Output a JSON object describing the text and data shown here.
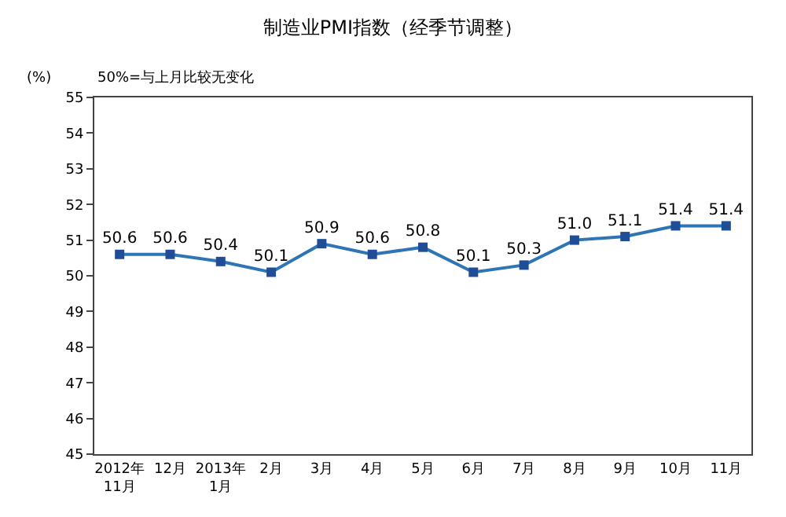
{
  "chart_data": {
    "type": "line",
    "title": "制造业PMI指数（经季节调整）",
    "ylabel": "(%)",
    "annotations": [
      "50%=与上月比较无变化"
    ],
    "categories": [
      "2012年\n11月",
      "12月",
      "2013年\n1月",
      "2月",
      "3月",
      "4月",
      "5月",
      "6月",
      "7月",
      "8月",
      "9月",
      "10月",
      "11月"
    ],
    "series": [
      {
        "color": "#2e75b6",
        "values": [
          50.6,
          50.6,
          50.4,
          50.1,
          50.9,
          50.6,
          50.8,
          50.1,
          50.3,
          51.0,
          51.1,
          51.4,
          51.4
        ]
      }
    ],
    "value_labels": [
      "50.6",
      "50.6",
      "50.4",
      "50.1",
      "50.9",
      "50.6",
      "50.8",
      "50.1",
      "50.3",
      "51.0",
      "51.1",
      "51.4",
      "51.4"
    ],
    "ylim": [
      45,
      55
    ],
    "yticks": [
      45,
      46,
      47,
      48,
      49,
      50,
      51,
      52,
      53,
      54,
      55
    ],
    "marker": "square",
    "line_style": "solid"
  }
}
